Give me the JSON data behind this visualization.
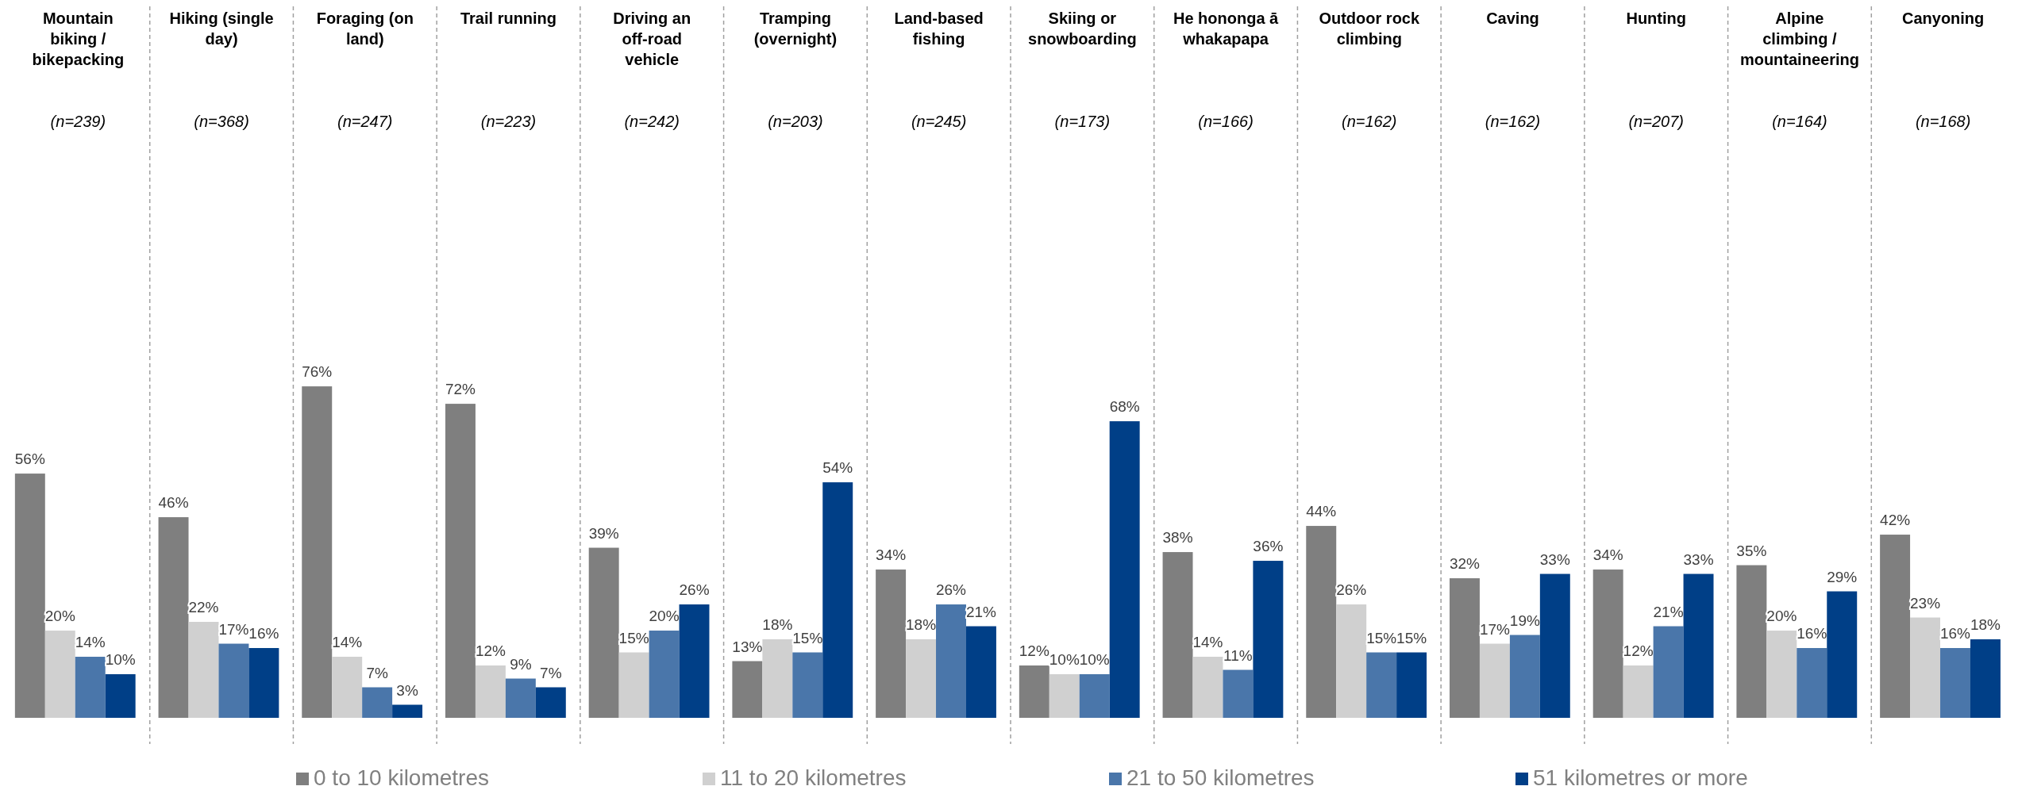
{
  "chart_data": {
    "type": "bar",
    "categories": [
      "Mountain biking / bikepacking",
      "Hiking (single day)",
      "Foraging (on land)",
      "Trail running",
      "Driving an off-road vehicle",
      "Tramping (overnight)",
      "Land-based fishing",
      "Skiing or snowboarding",
      "He hononga ā whakapapa",
      "Outdoor rock climbing",
      "Caving",
      "Hunting",
      "Alpine climbing / mountaineering",
      "Canyoning"
    ],
    "annotations": [
      "(n=239)",
      "(n=368)",
      "(n=247)",
      "(n=223)",
      "(n=242)",
      "(n=203)",
      "(n=245)",
      "(n=173)",
      "(n=166)",
      "(n=162)",
      "(n=162)",
      "(n=207)",
      "(n=164)",
      "(n=168)"
    ],
    "series": [
      {
        "name": "0 to 10 kilometres",
        "color": "#7f7f7f",
        "values": [
          56,
          46,
          76,
          72,
          39,
          13,
          34,
          12,
          38,
          44,
          32,
          34,
          35,
          42
        ],
        "value_labels": [
          "56%",
          "46%",
          "76%",
          "72%",
          "39%",
          "13%",
          "34%",
          "12%",
          "38%",
          "44%",
          "32%",
          "34%",
          "35%",
          "42%"
        ]
      },
      {
        "name": "11 to 20 kilometres",
        "color": "#d0d0d0",
        "values": [
          20,
          22,
          14,
          12,
          15,
          18,
          18,
          10,
          14,
          26,
          17,
          12,
          20,
          23
        ],
        "value_labels": [
          "20%",
          "22%",
          "14%",
          "12%",
          "15%",
          "18%",
          "18%",
          "10%",
          "14%",
          "26%",
          "17%",
          "12%",
          "20%",
          "23%"
        ]
      },
      {
        "name": "21 to 50 kilometres",
        "color": "#4a76aa",
        "values": [
          14,
          17,
          7,
          9,
          20,
          15,
          26,
          10,
          11,
          15,
          19,
          21,
          16,
          16
        ],
        "value_labels": [
          "14%",
          "17%",
          "7%",
          "9%",
          "20%",
          "15%",
          "26%",
          "10%",
          "11%",
          "15%",
          "19%",
          "21%",
          "16%",
          "16%"
        ]
      },
      {
        "name": "51 kilometres or more",
        "color": "#003f87",
        "values": [
          10,
          16,
          3,
          7,
          26,
          54,
          21,
          68,
          36,
          15,
          33,
          33,
          29,
          18
        ],
        "value_labels": [
          "10%",
          "16%",
          "3%",
          "7%",
          "26%",
          "54%",
          "21%",
          "68%",
          "36%",
          "15%",
          "33%",
          "33%",
          "29%",
          "18%"
        ]
      }
    ],
    "legend": "bottom"
  }
}
